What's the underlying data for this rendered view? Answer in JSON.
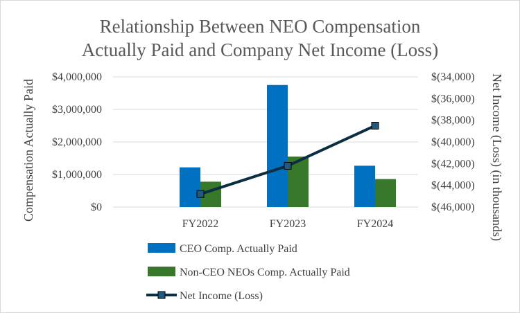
{
  "chart_data": {
    "type": "bar",
    "title_lines": [
      "Relationship Between NEO Compensation",
      "Actually Paid and Company Net Income (Loss)"
    ],
    "categories": [
      "FY2022",
      "FY2023",
      "FY2024"
    ],
    "ylabel": "Compensation Actually Paid",
    "y2label": "Net Income (Loss) (in thousands)",
    "ylim": [
      0,
      4000000
    ],
    "y_ticks": [
      0,
      1000000,
      2000000,
      3000000,
      4000000
    ],
    "y_tick_labels": [
      "$0",
      "$1,000,000",
      "$2,000,000",
      "$3,000,000",
      "$4,000,000"
    ],
    "y2lim": [
      -46000,
      -34000
    ],
    "y2_ticks": [
      -46000,
      -44000,
      -42000,
      -40000,
      -38000,
      -36000,
      -34000
    ],
    "y2_tick_labels": [
      "$(46,000)",
      "$(44,000)",
      "$(42,000)",
      "$(40,000)",
      "$(38,000)",
      "$(36,000)",
      "$(34,000)"
    ],
    "grid": true,
    "legend_position": "bottom",
    "series": [
      {
        "name": "CEO Comp. Actually Paid",
        "kind": "bar",
        "axis": "left",
        "color": "#0070c0",
        "values": [
          1220000,
          3750000,
          1270000
        ]
      },
      {
        "name": "Non-CEO NEOs Comp. Actually Paid",
        "kind": "bar",
        "axis": "left",
        "color": "#38782a",
        "values": [
          780000,
          1550000,
          860000
        ]
      },
      {
        "name": "Net Income (Loss)",
        "kind": "line",
        "axis": "right",
        "color": "#0c2e42",
        "marker_color": "#1f5a80",
        "values": [
          -44800,
          -42200,
          -38500
        ]
      }
    ]
  }
}
